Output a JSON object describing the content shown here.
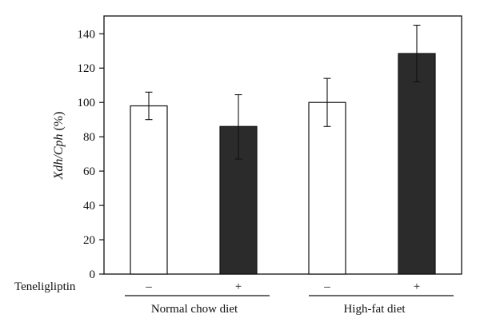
{
  "chart_data": {
    "type": "bar",
    "ylabel": "Xdh/Cph",
    "ylabel_unit": " (%)",
    "ylim": [
      0,
      150
    ],
    "yticks": [
      0,
      20,
      40,
      60,
      80,
      100,
      120,
      140
    ],
    "grid": false,
    "row_label": "Teneligliptin",
    "groups": [
      "Normal chow diet",
      "High-fat diet"
    ],
    "bars": [
      {
        "group": 0,
        "teneligliptin": "–",
        "value": 98,
        "err_low": 90,
        "err_high": 106,
        "color": "#ffffff"
      },
      {
        "group": 0,
        "teneligliptin": "+",
        "value": 86,
        "err_low": 67,
        "err_high": 104.5,
        "color": "#2b2b2b"
      },
      {
        "group": 1,
        "teneligliptin": "–",
        "value": 100,
        "err_low": 86,
        "err_high": 114,
        "color": "#ffffff"
      },
      {
        "group": 1,
        "teneligliptin": "+",
        "value": 128.5,
        "err_low": 112,
        "err_high": 145,
        "color": "#2b2b2b"
      }
    ]
  }
}
